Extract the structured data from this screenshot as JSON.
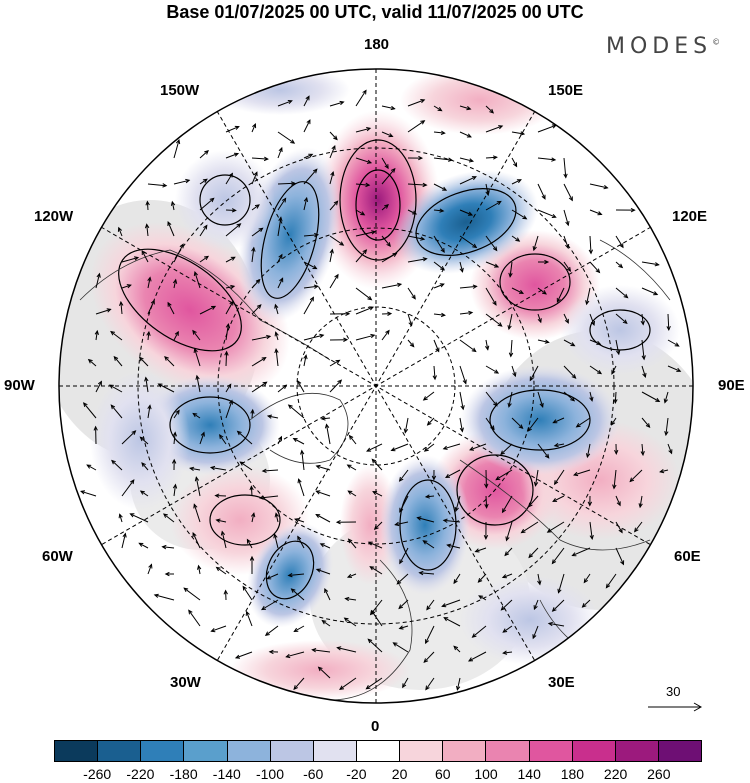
{
  "title": "Base 01/07/2025 00 UTC, valid 11/07/2025 00 UTC",
  "brand": "MODES",
  "brand_mark": "©",
  "map": {
    "projection": "north polar stereographic",
    "longitude_labels": {
      "top": "180",
      "bottom": "0",
      "left": "90W",
      "right": "90E",
      "upper_left_1": "150W",
      "upper_left_2": "120W",
      "upper_right_1": "150E",
      "upper_right_2": "120E",
      "lower_left_1": "60W",
      "lower_left_2": "30W",
      "lower_right_1": "60E",
      "lower_right_2": "30E"
    },
    "reference_vector": "30"
  },
  "colorbar": {
    "colors": [
      "#0b3a5c",
      "#1a5f90",
      "#2f7fb8",
      "#5a9fcc",
      "#8db3dc",
      "#bcc6e4",
      "#e1e1f0",
      "#ffffff",
      "#f7d5dc",
      "#f2aec2",
      "#ea84b0",
      "#e0569f",
      "#c92f8d",
      "#9c1a7d",
      "#6e0f74"
    ],
    "tick_labels": [
      "-260",
      "-220",
      "-180",
      "-140",
      "-100",
      "-60",
      "-20",
      "20",
      "60",
      "100",
      "140",
      "180",
      "220",
      "260"
    ]
  }
}
